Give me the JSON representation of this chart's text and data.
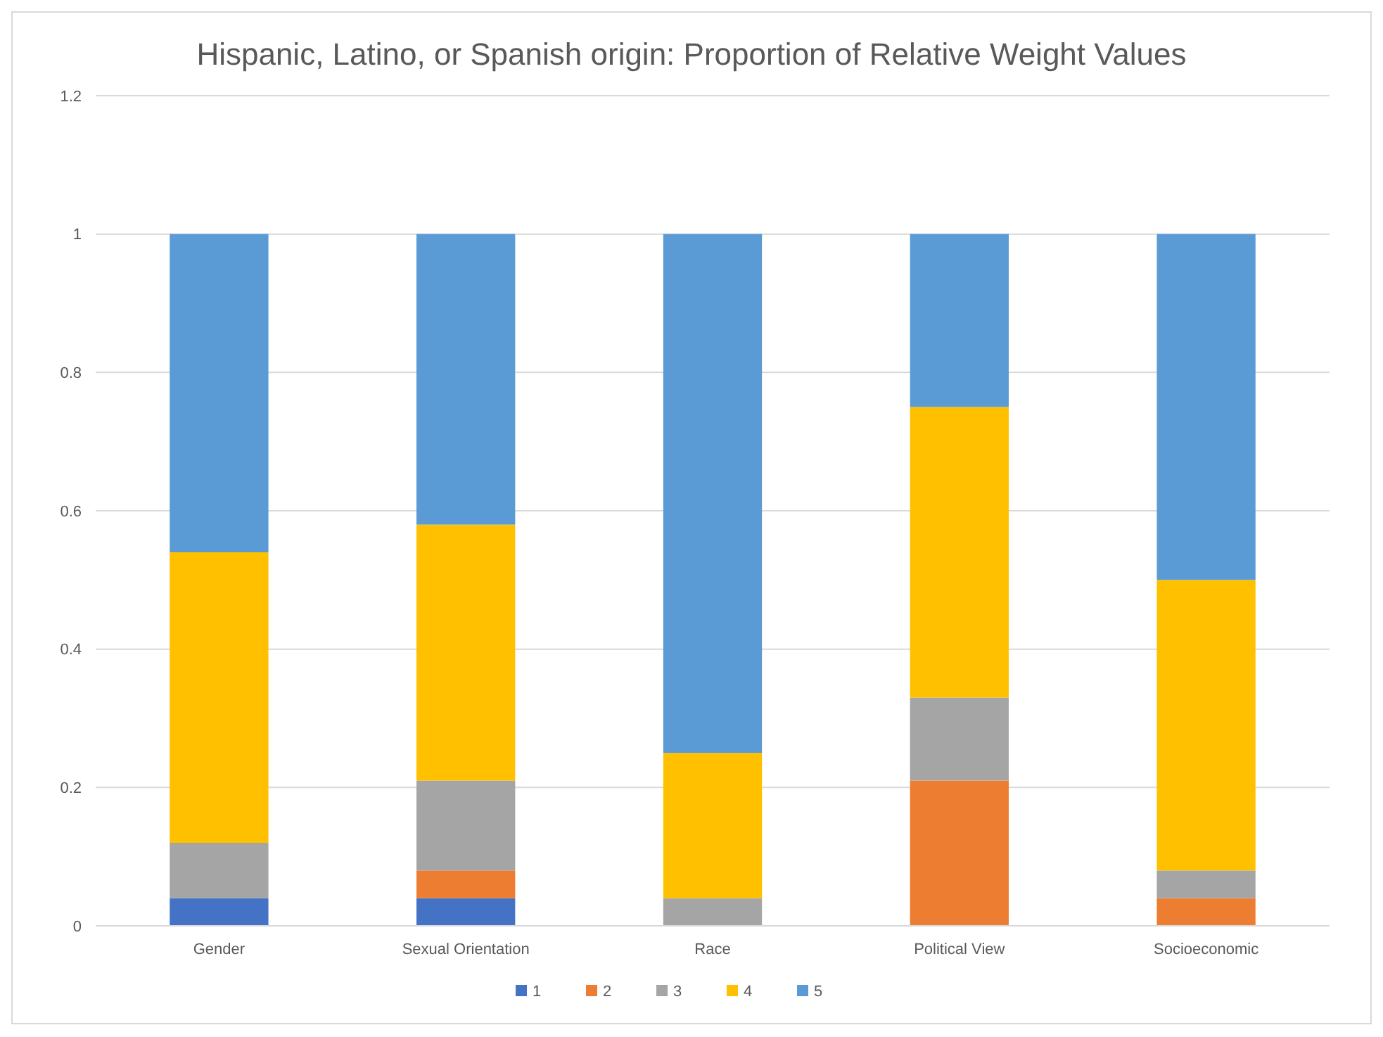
{
  "chart_data": {
    "type": "bar",
    "title": "Hispanic, Latino, or Spanish origin: Proportion of Relative Weight Values",
    "categories": [
      "Gender",
      "Sexual Orientation",
      "Race",
      "Political View",
      "Socioeconomic"
    ],
    "stacked": true,
    "series": [
      {
        "name": "1",
        "color": "#4472c4",
        "values": [
          0.04,
          0.04,
          0,
          0,
          0
        ]
      },
      {
        "name": "2",
        "color": "#ed7d31",
        "values": [
          0,
          0.04,
          0,
          0.21,
          0.04
        ]
      },
      {
        "name": "3",
        "color": "#a5a5a5",
        "values": [
          0.08,
          0.13,
          0.04,
          0.12,
          0.04
        ]
      },
      {
        "name": "4",
        "color": "#ffc000",
        "values": [
          0.42,
          0.37,
          0.21,
          0.42,
          0.42
        ]
      },
      {
        "name": "5",
        "color": "#5b9bd5",
        "values": [
          0.46,
          0.42,
          0.75,
          0.25,
          0.5
        ]
      }
    ],
    "ylim": [
      0,
      1.2
    ],
    "yticks": [
      0,
      0.2,
      0.4,
      0.6,
      0.8,
      1,
      1.2
    ],
    "grid": "y",
    "legend": "bottom"
  }
}
